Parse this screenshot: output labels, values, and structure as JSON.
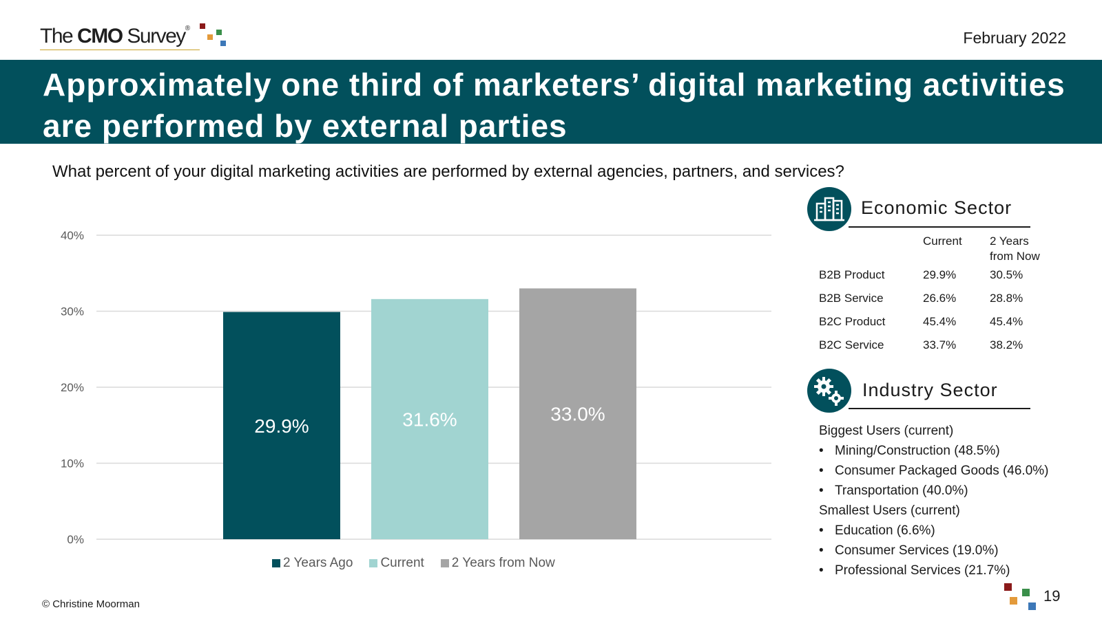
{
  "header": {
    "logo_text_pre": "The",
    "logo_text_bold": "CMO",
    "logo_text_post": "Survey",
    "logo_registered": "®",
    "date": "February 2022"
  },
  "banner": {
    "title": "Approximately one third of marketers’ digital marketing activities are performed by external parties"
  },
  "question": "What percent of your digital marketing activities are performed by external agencies, partners, and services?",
  "chart_data": {
    "type": "bar",
    "title": "",
    "xlabel": "",
    "ylabel": "",
    "categories": [
      "2 Years Ago",
      "Current",
      "2 Years from Now"
    ],
    "values": [
      29.9,
      31.6,
      33.0
    ],
    "data_labels": [
      "29.9%",
      "31.6%",
      "33.0%"
    ],
    "colors": [
      "#02505c",
      "#a1d4d1",
      "#a5a5a5"
    ],
    "label_colors": [
      "#ffffff",
      "#ffffff",
      "#ffffff"
    ],
    "ylim": [
      0,
      40
    ],
    "yticks": [
      0,
      10,
      20,
      30,
      40
    ],
    "ytick_labels": [
      "0%",
      "10%",
      "20%",
      "30%",
      "40%"
    ],
    "grid": true,
    "legend": {
      "position": "bottom",
      "entries": [
        "2 Years Ago",
        "Current",
        "2 Years from Now"
      ]
    }
  },
  "economic_sector": {
    "title": "Economic Sector",
    "icon": "buildings-icon",
    "col_current": "Current",
    "col_future_line1": "2 Years",
    "col_future_line2": "from Now",
    "rows": [
      {
        "label": "B2B Product",
        "current": "29.9%",
        "future": "30.5%"
      },
      {
        "label": "B2B Service",
        "current": "26.6%",
        "future": "28.8%"
      },
      {
        "label": "B2C Product",
        "current": "45.4%",
        "future": "45.4%"
      },
      {
        "label": "B2C Service",
        "current": "33.7%",
        "future": "38.2%"
      }
    ]
  },
  "industry_sector": {
    "title": "Industry Sector",
    "icon": "gears-icon",
    "biggest_label": "Biggest Users (current)",
    "biggest": [
      "Mining/Construction (48.5%)",
      "Consumer Packaged Goods (46.0%)",
      "Transportation (40.0%)"
    ],
    "smallest_label": "Smallest Users (current)",
    "smallest": [
      "Education (6.6%)",
      "Consumer Services (19.0%)",
      "Professional Services (21.7%)"
    ]
  },
  "footer": {
    "copyright": "© Christine Moorman",
    "page_number": "19"
  },
  "colors": {
    "brand_teal": "#02505c",
    "light_teal": "#a1d4d1",
    "gray": "#a5a5a5",
    "logo_red": "#8b1a1a",
    "logo_orange": "#e39a3b",
    "logo_green": "#3a8f4a",
    "logo_blue": "#3d78b8"
  }
}
